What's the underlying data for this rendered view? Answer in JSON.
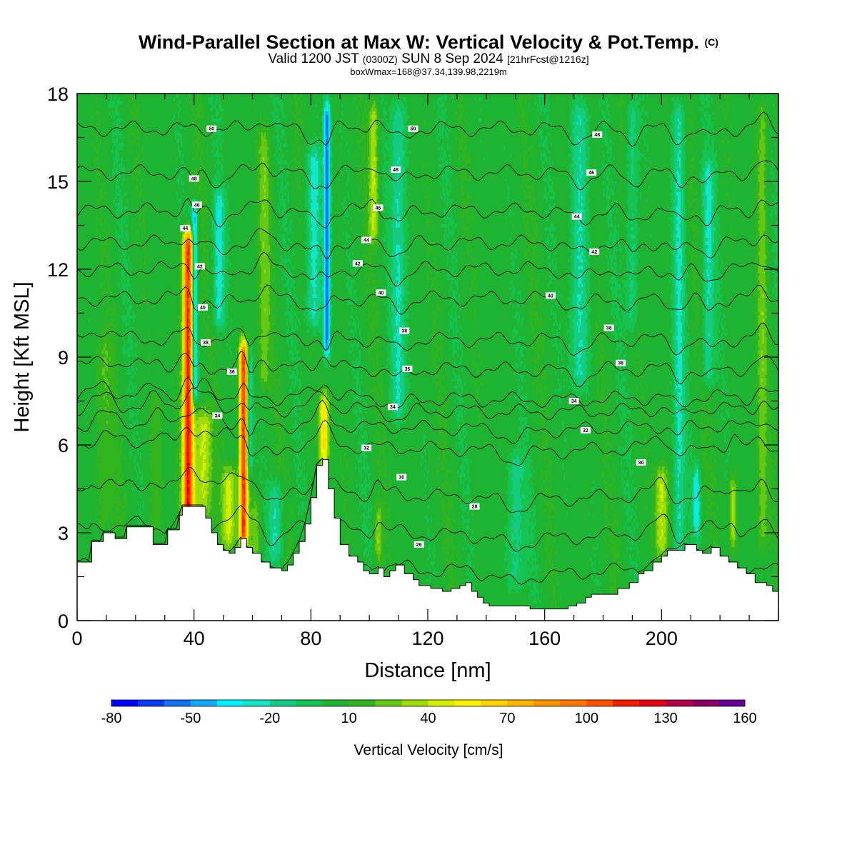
{
  "title": {
    "line1_main": "Wind-Parallel Section at Max W: Vertical Velocity & Pot.Temp.",
    "line1_mark": "(C)",
    "line2_a": "Valid 1200 JST",
    "line2_b": "(0300Z)",
    "line2_c": "SUN 8 Sep 2024",
    "line2_d": "[21hrFcst@1216z]",
    "line3": "boxWmax=168@37.34,139.98,2219m"
  },
  "chart_data": {
    "type": "heatmap",
    "xlabel": "Distance [nm]",
    "ylabel": "Height [Kft MSL]",
    "xlim": [
      0,
      240
    ],
    "ylim": [
      0,
      18
    ],
    "xticks": [
      "0",
      "40",
      "80",
      "120",
      "160",
      "200"
    ],
    "yticks": [
      "0",
      "3",
      "6",
      "9",
      "12",
      "15",
      "18"
    ],
    "colorbar": {
      "label": "Vertical Velocity [cm/s]",
      "min": -80,
      "max": 160,
      "step": 10,
      "tick_labels": [
        "-80",
        "-50",
        "-20",
        "10",
        "40",
        "70",
        "100",
        "130",
        "160"
      ],
      "colors": [
        "#0000ff",
        "#0a3cf5",
        "#1473f5",
        "#14aafa",
        "#00f0ff",
        "#14e6c8",
        "#14cd82",
        "#14c350",
        "#1eb432",
        "#32b41e",
        "#64c814",
        "#a0dc0a",
        "#d2f000",
        "#fff000",
        "#ffd200",
        "#ffb400",
        "#ff9600",
        "#ff7800",
        "#ff5000",
        "#f51e00",
        "#e60014",
        "#b40046",
        "#8c0064",
        "#640096"
      ]
    },
    "background_value": 5,
    "terrain_height_kft": [
      [
        0,
        2.0
      ],
      [
        4,
        2.0
      ],
      [
        5,
        2.7
      ],
      [
        8,
        2.7
      ],
      [
        9,
        3.0
      ],
      [
        12,
        3.0
      ],
      [
        13,
        2.8
      ],
      [
        16,
        2.8
      ],
      [
        17,
        3.2
      ],
      [
        25,
        3.2
      ],
      [
        26,
        2.6
      ],
      [
        30,
        2.6
      ],
      [
        31,
        3.1
      ],
      [
        34,
        3.1
      ],
      [
        35,
        3.6
      ],
      [
        36,
        3.9
      ],
      [
        43,
        3.9
      ],
      [
        44,
        3.5
      ],
      [
        46,
        3.0
      ],
      [
        48,
        2.6
      ],
      [
        50,
        2.4
      ],
      [
        52,
        2.3
      ],
      [
        54,
        2.5
      ],
      [
        56,
        2.8
      ],
      [
        58,
        2.5
      ],
      [
        60,
        2.3
      ],
      [
        63,
        2.0
      ],
      [
        66,
        1.8
      ],
      [
        70,
        1.7
      ],
      [
        72,
        1.9
      ],
      [
        74,
        2.3
      ],
      [
        76,
        2.7
      ],
      [
        78,
        3.3
      ],
      [
        80,
        4.2
      ],
      [
        82,
        5.3
      ],
      [
        84,
        5.5
      ],
      [
        86,
        4.5
      ],
      [
        88,
        3.5
      ],
      [
        90,
        2.6
      ],
      [
        93,
        2.2
      ],
      [
        96,
        2.0
      ],
      [
        98,
        1.7
      ],
      [
        100,
        1.6
      ],
      [
        103,
        1.8
      ],
      [
        105,
        1.5
      ],
      [
        107,
        1.7
      ],
      [
        109,
        1.9
      ],
      [
        112,
        1.6
      ],
      [
        115,
        1.4
      ],
      [
        117,
        1.2
      ],
      [
        121,
        1.1
      ],
      [
        125,
        1.0
      ],
      [
        128,
        1.1
      ],
      [
        131,
        1.2
      ],
      [
        133,
        1.3
      ],
      [
        135,
        1.0
      ],
      [
        137,
        0.8
      ],
      [
        139,
        0.6
      ],
      [
        141,
        0.5
      ],
      [
        150,
        0.5
      ],
      [
        155,
        0.4
      ],
      [
        165,
        0.4
      ],
      [
        168,
        0.5
      ],
      [
        171,
        0.6
      ],
      [
        174,
        0.8
      ],
      [
        176,
        0.9
      ],
      [
        180,
        0.9
      ],
      [
        185,
        1.1
      ],
      [
        189,
        1.3
      ],
      [
        192,
        1.6
      ],
      [
        194,
        1.7
      ],
      [
        197,
        2.0
      ],
      [
        200,
        2.2
      ],
      [
        202,
        2.4
      ],
      [
        205,
        2.4
      ],
      [
        208,
        2.6
      ],
      [
        212,
        2.4
      ],
      [
        214,
        2.3
      ],
      [
        217,
        2.5
      ],
      [
        220,
        2.2
      ],
      [
        223,
        2.0
      ],
      [
        226,
        1.8
      ],
      [
        229,
        1.6
      ],
      [
        232,
        1.3
      ],
      [
        236,
        1.2
      ],
      [
        238,
        1.0
      ],
      [
        240,
        1.0
      ]
    ],
    "updraft_features": [
      {
        "x": 38.0,
        "w": 1.8,
        "base": 2.3,
        "top": 13.6,
        "value": 118
      },
      {
        "x": 43.0,
        "w": 3.0,
        "base": 3.5,
        "top": 7.5,
        "value": 45
      },
      {
        "x": 52.0,
        "w": 2.5,
        "base": 2.5,
        "top": 5.5,
        "value": 42
      },
      {
        "x": 57.0,
        "w": 1.4,
        "base": 2.5,
        "top": 9.8,
        "value": 112
      },
      {
        "x": 84.5,
        "w": 1.6,
        "base": 5.3,
        "top": 8.0,
        "value": 62
      },
      {
        "x": 101.5,
        "w": 1.6,
        "base": 13.0,
        "top": 18.0,
        "value": 40
      },
      {
        "x": 103.0,
        "w": 1.3,
        "base": 2.0,
        "top": 4.2,
        "value": 30
      },
      {
        "x": 64.0,
        "w": 2.0,
        "base": 8.0,
        "top": 17.0,
        "value": 25
      },
      {
        "x": 61.0,
        "w": 2.0,
        "base": 2.0,
        "top": 4.5,
        "value": 25
      },
      {
        "x": 200.0,
        "w": 2.2,
        "base": 2.2,
        "top": 5.5,
        "value": 40
      },
      {
        "x": 234.5,
        "w": 1.8,
        "base": 2.5,
        "top": 18.0,
        "value": 25
      },
      {
        "x": 224.5,
        "w": 1.2,
        "base": 2.5,
        "top": 5.2,
        "value": 40
      },
      {
        "x": 9.0,
        "w": 3.0,
        "base": 3.0,
        "top": 10.0,
        "value": 18
      },
      {
        "x": 27.0,
        "w": 2.0,
        "base": 3.0,
        "top": 8.0,
        "value": 16
      }
    ],
    "downdraft_features": [
      {
        "x": 40.2,
        "w": 1.0,
        "base": 7.5,
        "top": 14.5,
        "value": -45
      },
      {
        "x": 59.0,
        "w": 1.0,
        "base": 5.0,
        "top": 9.5,
        "value": -25
      },
      {
        "x": 85.5,
        "w": 1.1,
        "base": 9.0,
        "top": 18.0,
        "value": -55
      },
      {
        "x": 81.0,
        "w": 2.5,
        "base": 10.0,
        "top": 16.5,
        "value": -25
      },
      {
        "x": 48.5,
        "w": 2.0,
        "base": 10.0,
        "top": 15.0,
        "value": -25
      },
      {
        "x": 212.0,
        "w": 1.2,
        "base": 3.0,
        "top": 5.5,
        "value": -30
      },
      {
        "x": 110.0,
        "w": 2.5,
        "base": 7.0,
        "top": 18.0,
        "value": -20
      },
      {
        "x": 150.0,
        "w": 3.0,
        "base": 1.0,
        "top": 6.0,
        "value": -15
      },
      {
        "x": 172.0,
        "w": 3.0,
        "base": 8.0,
        "top": 18.0,
        "value": -20
      },
      {
        "x": 190.0,
        "w": 2.0,
        "base": 10.0,
        "top": 18.0,
        "value": -15
      },
      {
        "x": 206.0,
        "w": 2.0,
        "base": 2.0,
        "top": 18.0,
        "value": -20
      },
      {
        "x": 216.0,
        "w": 2.0,
        "base": 8.0,
        "top": 16.0,
        "value": -20
      },
      {
        "x": 68.0,
        "w": 2.5,
        "base": 2.0,
        "top": 5.0,
        "value": -20
      }
    ],
    "theta_contours": [
      {
        "base": 1.8,
        "label": "26",
        "lx": 117,
        "ly": 2.6
      },
      {
        "base": 3.0,
        "label": "28",
        "lx": 136,
        "ly": 3.9
      },
      {
        "base": 4.3,
        "label": "30",
        "lx": 111,
        "ly": 4.9
      },
      {
        "base": 5.9,
        "label": "32",
        "lx": 99,
        "ly": 5.9
      },
      {
        "base": 6.6,
        "label": "32",
        "lx": 174,
        "ly": 6.5
      },
      {
        "base": 7.2,
        "label": "34",
        "lx": 48,
        "ly": 7.0
      },
      {
        "base": 7.6,
        "label": "34",
        "lx": 108,
        "ly": 7.3
      },
      {
        "base": 8.6,
        "label": "36",
        "lx": 113,
        "ly": 8.6
      },
      {
        "base": 9.6,
        "label": "38",
        "lx": 112,
        "ly": 9.9
      },
      {
        "base": 11.0,
        "label": "40",
        "lx": 104,
        "ly": 11.2
      },
      {
        "base": 12.0,
        "label": "42",
        "lx": 96,
        "ly": 12.2
      },
      {
        "base": 12.9,
        "label": "44",
        "lx": 99,
        "ly": 13.0
      },
      {
        "base": 14.0,
        "label": "46",
        "lx": 103,
        "ly": 14.1
      },
      {
        "base": 15.3,
        "label": "48",
        "lx": 109,
        "ly": 15.4
      },
      {
        "base": 16.8,
        "label": "50",
        "lx": 115,
        "ly": 16.8
      }
    ],
    "contour_labels_extra": [
      {
        "label": "50",
        "x": 46,
        "y": 16.8
      },
      {
        "label": "48",
        "x": 40,
        "y": 15.1
      },
      {
        "label": "46",
        "x": 41,
        "y": 14.2
      },
      {
        "label": "44",
        "x": 37,
        "y": 13.4
      },
      {
        "label": "42",
        "x": 42,
        "y": 12.1
      },
      {
        "label": "40",
        "x": 43,
        "y": 10.7
      },
      {
        "label": "38",
        "x": 44,
        "y": 9.5
      },
      {
        "label": "36",
        "x": 53,
        "y": 8.5
      },
      {
        "label": "30",
        "x": 193,
        "y": 5.4
      },
      {
        "label": "34",
        "x": 170,
        "y": 7.5
      },
      {
        "label": "36",
        "x": 186,
        "y": 8.8
      },
      {
        "label": "38",
        "x": 182,
        "y": 10.0
      },
      {
        "label": "40",
        "x": 162,
        "y": 11.1
      },
      {
        "label": "42",
        "x": 177,
        "y": 12.6
      },
      {
        "label": "44",
        "x": 171,
        "y": 13.8
      },
      {
        "label": "46",
        "x": 176,
        "y": 15.3
      },
      {
        "label": "48",
        "x": 178,
        "y": 16.6
      }
    ]
  }
}
